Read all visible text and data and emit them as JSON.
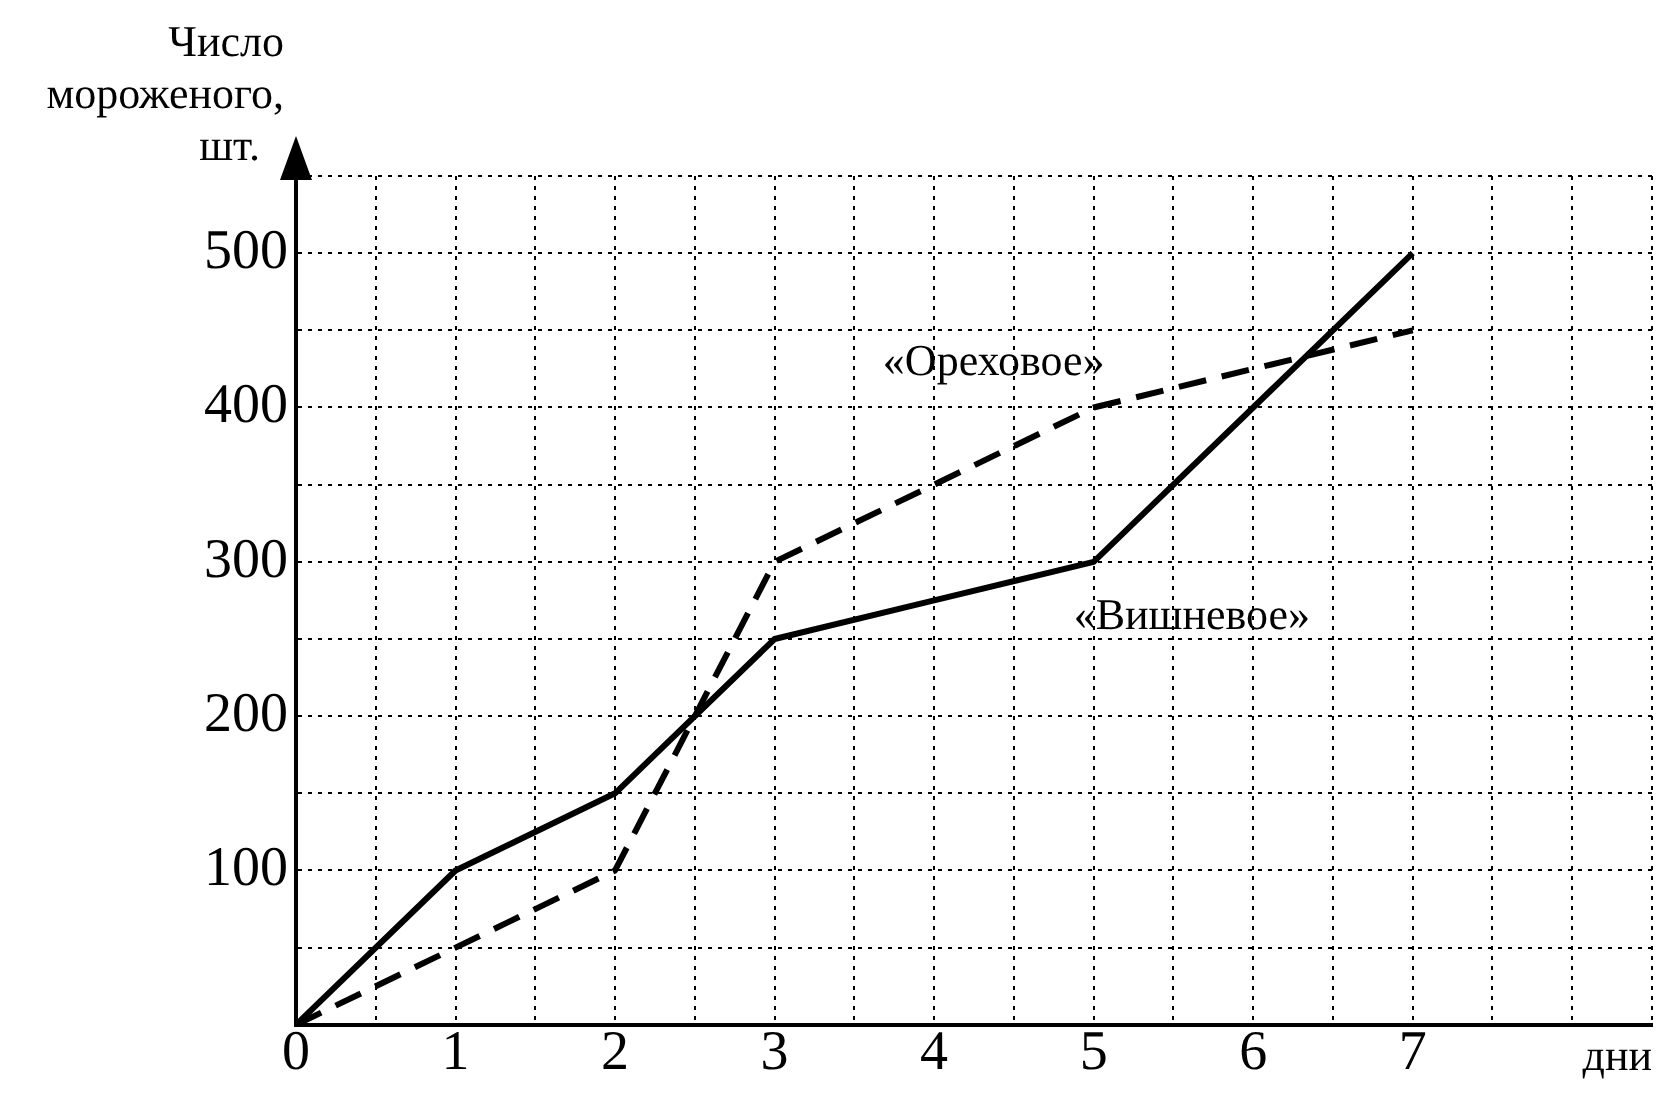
{
  "chart_data": {
    "type": "line",
    "xlabel": "дни",
    "ylabel": "Число мороженого, шт.",
    "x": [
      0,
      1,
      2,
      3,
      4,
      5,
      6,
      7
    ],
    "series": [
      {
        "name": "«Вишневое»",
        "color": "#000000",
        "line_style": "solid",
        "values": [
          0,
          100,
          150,
          250,
          275,
          300,
          400,
          500
        ]
      },
      {
        "name": "«Ореховое»",
        "color": "#000000",
        "line_style": "dashed",
        "values": [
          0,
          50,
          100,
          300,
          350,
          400,
          425,
          450
        ]
      }
    ],
    "xlim": [
      0,
      8.5
    ],
    "ylim": [
      0,
      550
    ],
    "xticks": [
      {
        "value": 0,
        "label": "0"
      },
      {
        "value": 0.5,
        "label": null
      },
      1,
      {
        "value": 1.5,
        "label": null
      },
      2,
      {
        "value": 2.5,
        "label": null
      },
      3,
      {
        "value": 3.5,
        "label": null
      },
      4,
      {
        "value": 4.5,
        "label": null
      },
      5,
      {
        "value": 5.5,
        "label": null
      },
      6,
      {
        "value": 6.5,
        "label": null
      },
      7,
      {
        "value": 7.5,
        "label": null
      },
      {
        "value": 8,
        "label": null
      },
      {
        "value": 8.5,
        "label": null
      }
    ],
    "yticks": [
      {
        "value": 0,
        "label": null
      },
      {
        "value": 50,
        "label": null
      },
      100,
      {
        "value": 150,
        "label": null
      },
      200,
      {
        "value": 250,
        "label": null
      },
      300,
      {
        "value": 350,
        "label": null
      },
      400,
      {
        "value": 450,
        "label": null
      },
      500,
      {
        "value": 550,
        "label": null
      }
    ],
    "grid": true,
    "legend": false,
    "marker": "none"
  }
}
